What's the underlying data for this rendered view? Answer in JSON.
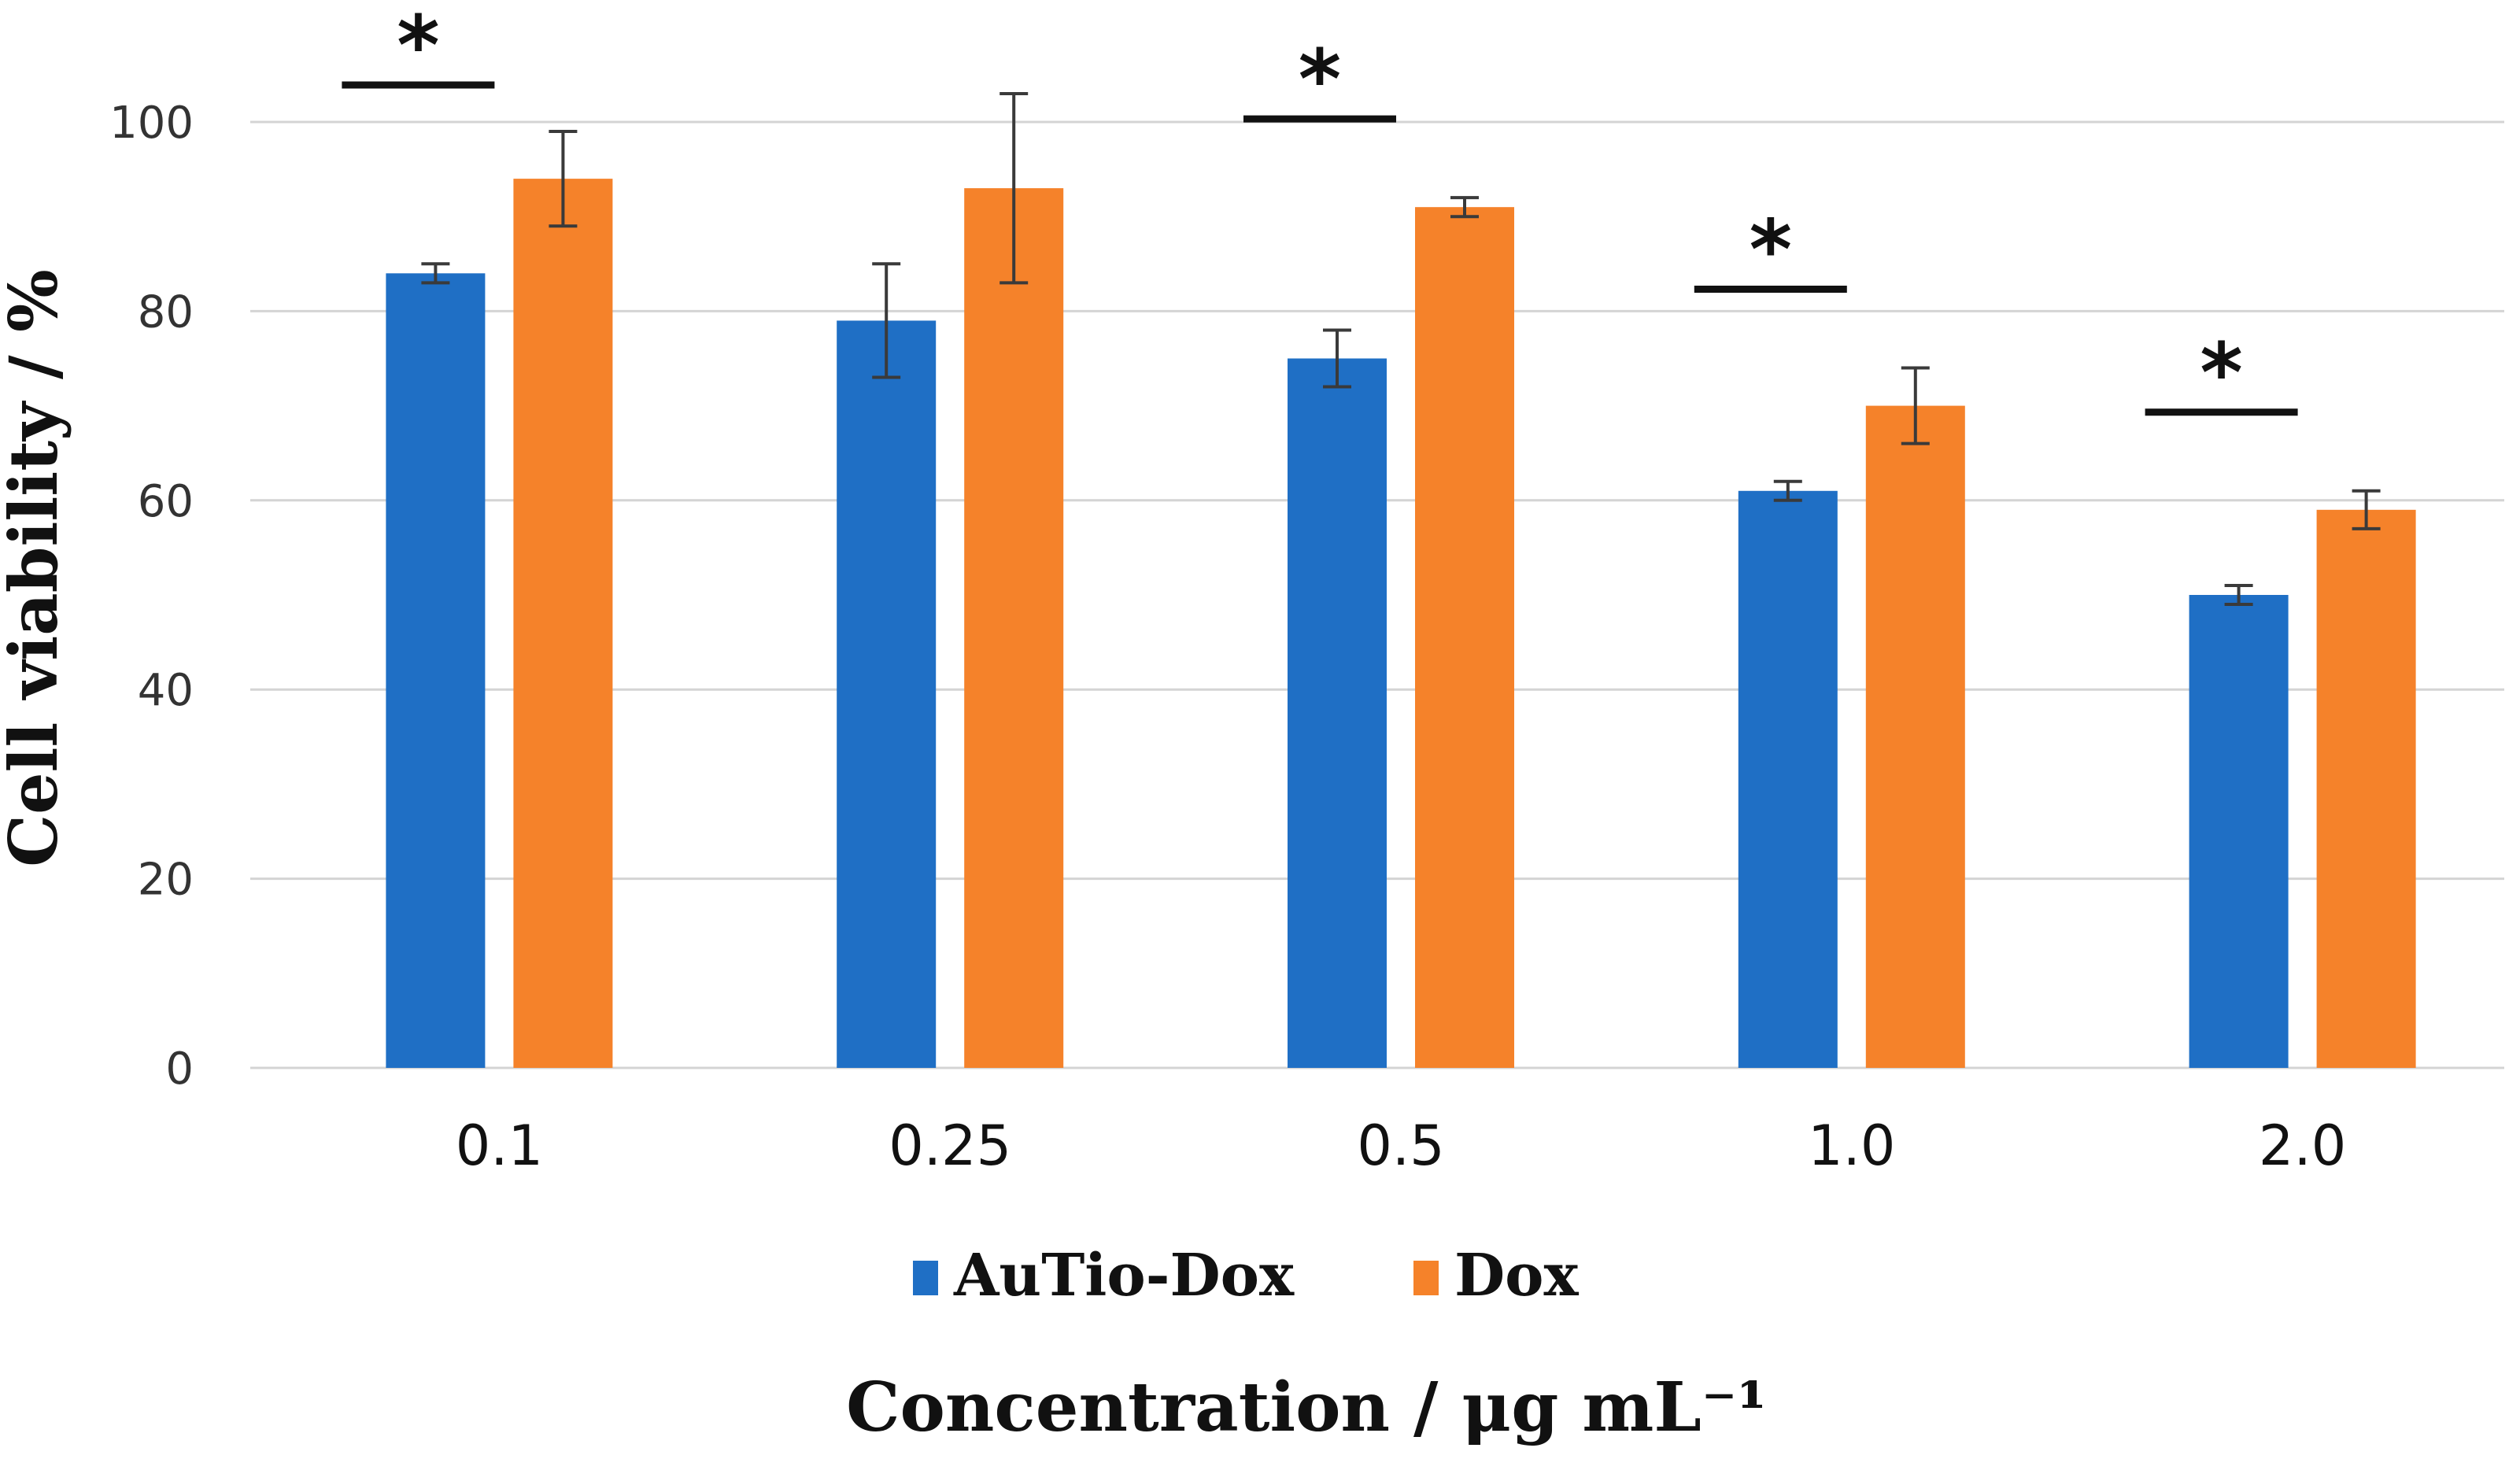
{
  "chart_data": {
    "type": "bar",
    "title": "",
    "xlabel": "Concentration / μg mL⁻¹",
    "ylabel": "Cell viability / %",
    "ylim": [
      0,
      100
    ],
    "yticks": [
      0,
      20,
      40,
      60,
      80,
      100
    ],
    "grid": true,
    "legend_position": "bottom",
    "categories": [
      "0.1",
      "0.25",
      "0.5",
      "1.0",
      "2.0"
    ],
    "series": [
      {
        "name": "AuTio-Dox",
        "color": "#1f6fc5",
        "values": [
          84,
          79,
          75,
          61,
          50
        ],
        "errors": [
          1,
          6,
          3,
          1,
          1
        ]
      },
      {
        "name": "Dox",
        "color": "#f5822a",
        "values": [
          94,
          93,
          91,
          70,
          59
        ],
        "errors": [
          5,
          10,
          1,
          4,
          2
        ]
      }
    ],
    "significance": [
      {
        "category": "0.1",
        "label": "*"
      },
      {
        "category": "0.5",
        "label": "*"
      },
      {
        "category": "1.0",
        "label": "*"
      },
      {
        "category": "2.0",
        "label": "*"
      }
    ]
  }
}
